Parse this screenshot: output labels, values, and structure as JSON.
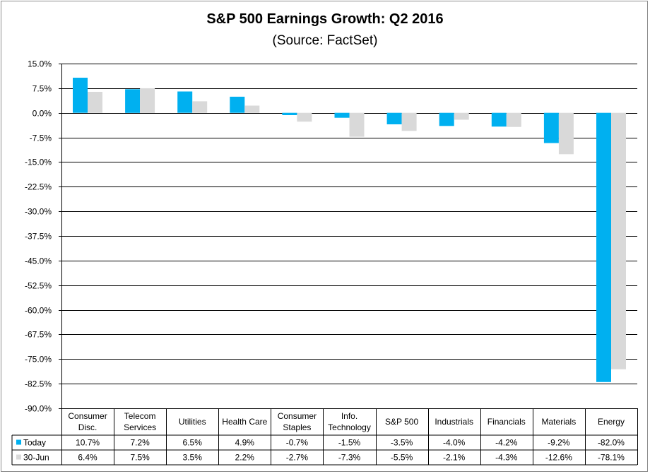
{
  "chart_data": {
    "type": "bar",
    "title": "S&P 500 Earnings Growth: Q2 2016",
    "subtitle": "(Source: FactSet)",
    "categories": [
      [
        "Consumer",
        "Disc."
      ],
      [
        "Telecom",
        "Services"
      ],
      [
        "Utilities"
      ],
      [
        "Health Care"
      ],
      [
        "Consumer",
        "Staples"
      ],
      [
        "Info.",
        "Technology"
      ],
      [
        "S&P 500"
      ],
      [
        "Industrials"
      ],
      [
        "Financials"
      ],
      [
        "Materials"
      ],
      [
        "Energy"
      ]
    ],
    "series": [
      {
        "name": "Today",
        "color": "#00b0f0",
        "values": [
          10.7,
          7.2,
          6.5,
          4.9,
          -0.7,
          -1.5,
          -3.5,
          -4.0,
          -4.2,
          -9.2,
          -82.0
        ],
        "labels": [
          "10.7%",
          "7.2%",
          "6.5%",
          "4.9%",
          "-0.7%",
          "-1.5%",
          "-3.5%",
          "-4.0%",
          "-4.2%",
          "-9.2%",
          "-82.0%"
        ]
      },
      {
        "name": "30-Jun",
        "color": "#d9d9d9",
        "values": [
          6.4,
          7.5,
          3.5,
          2.2,
          -2.7,
          -7.3,
          -5.5,
          -2.1,
          -4.3,
          -12.6,
          -78.1
        ],
        "labels": [
          "6.4%",
          "7.5%",
          "3.5%",
          "2.2%",
          "-2.7%",
          "-7.3%",
          "-5.5%",
          "-2.1%",
          "-4.3%",
          "-12.6%",
          "-78.1%"
        ]
      }
    ],
    "ylim": [
      -90,
      15
    ],
    "yticks": [
      15,
      7.5,
      0,
      -7.5,
      -15,
      -22.5,
      -30,
      -37.5,
      -45,
      -52.5,
      -60,
      -67.5,
      -75,
      -82.5,
      -90
    ],
    "ytick_labels": [
      "15.0%",
      "7.5%",
      "0.0%",
      "-7.5%",
      "-15.0%",
      "-22.5%",
      "-30.0%",
      "-37.5%",
      "-45.0%",
      "-52.5%",
      "-60.0%",
      "-67.5%",
      "-75.0%",
      "-82.5%",
      "-90.0%"
    ],
    "grid": true,
    "legend": "data-table"
  }
}
